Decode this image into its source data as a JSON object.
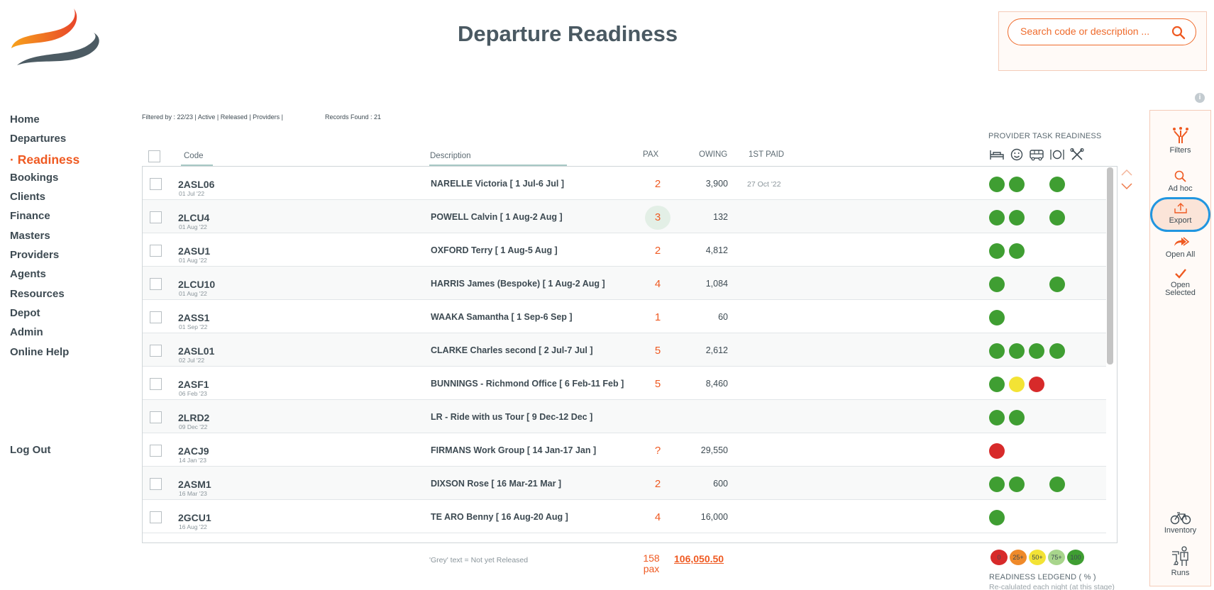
{
  "page": {
    "title": "Departure Readiness"
  },
  "search": {
    "placeholder": "Search code or description ..."
  },
  "nav": {
    "items": [
      {
        "label": "Home",
        "active": false
      },
      {
        "label": "Departures",
        "active": false
      },
      {
        "label": "Readiness",
        "active": true
      },
      {
        "label": "Bookings",
        "active": false
      },
      {
        "label": "Clients",
        "active": false
      },
      {
        "label": "Finance",
        "active": false
      },
      {
        "label": "Masters",
        "active": false
      },
      {
        "label": "Providers",
        "active": false
      },
      {
        "label": "Agents",
        "active": false
      },
      {
        "label": "Resources",
        "active": false
      },
      {
        "label": "Depot",
        "active": false
      },
      {
        "label": "Admin",
        "active": false
      },
      {
        "label": "Online Help",
        "active": false
      }
    ],
    "logout": "Log Out"
  },
  "filter": {
    "text": "Filtered by : 22/23 | Active | Released | Providers |",
    "records": "Records Found : 21"
  },
  "columns": {
    "code": "Code",
    "description": "Description",
    "pax": "PAX",
    "owing": "OWING",
    "first_paid": "1ST PAID",
    "provider_task": "PROVIDER  TASK READINESS",
    "provider_icons": [
      "bed-icon",
      "smiley-icon",
      "bus-icon",
      "dining-icon",
      "tools-icon"
    ]
  },
  "rows": [
    {
      "code": "2ASL06",
      "date": "01 Jul '22",
      "description": "NARELLE Victoria  [ 1 Jul-6 Jul ]",
      "pax": "2",
      "owing": "3,900",
      "first_paid": "27 Oct '22",
      "dots": [
        "green",
        "green",
        "",
        "green",
        ""
      ]
    },
    {
      "code": "2LCU4",
      "date": "01 Aug '22",
      "description": "POWELL Calvin  [ 1 Aug-2 Aug ]",
      "pax": "3",
      "pax_highlight": true,
      "owing": "132",
      "first_paid": "",
      "dots": [
        "green",
        "green",
        "",
        "green",
        ""
      ]
    },
    {
      "code": "2ASU1",
      "date": "01 Aug '22",
      "description": "OXFORD Terry  [ 1 Aug-5 Aug ]",
      "pax": "2",
      "owing": "4,812",
      "first_paid": "",
      "dots": [
        "green",
        "green",
        "",
        "",
        ""
      ]
    },
    {
      "code": "2LCU10",
      "date": "01 Aug '22",
      "description": "HARRIS James (Bespoke)  [ 1 Aug-2 Aug ]",
      "pax": "4",
      "owing": "1,084",
      "first_paid": "",
      "dots": [
        "green",
        "",
        "",
        "green",
        ""
      ]
    },
    {
      "code": "2ASS1",
      "date": "01 Sep '22",
      "description": "WAAKA Samantha  [ 1 Sep-6 Sep ]",
      "pax": "1",
      "owing": "60",
      "first_paid": "",
      "dots": [
        "green",
        "",
        "",
        "",
        ""
      ]
    },
    {
      "code": "2ASL01",
      "date": "02 Jul '22",
      "description": "CLARKE Charles second  [ 2 Jul-7 Jul ]",
      "pax": "5",
      "owing": "2,612",
      "first_paid": "",
      "dots": [
        "green",
        "green",
        "green",
        "green",
        ""
      ]
    },
    {
      "code": "2ASF1",
      "date": "06 Feb '23",
      "description": "BUNNINGS - Richmond Office  [ 6 Feb-11 Feb ]",
      "pax": "5",
      "owing": "8,460",
      "first_paid": "",
      "dots": [
        "green",
        "yellow",
        "red",
        "",
        ""
      ]
    },
    {
      "code": "2LRD2",
      "date": "09 Dec '22",
      "description": "LR - Ride with us Tour  [ 9 Dec-12 Dec ]",
      "pax": "",
      "owing": "",
      "first_paid": "",
      "dots": [
        "green",
        "green",
        "",
        "",
        ""
      ]
    },
    {
      "code": "2ACJ9",
      "date": "14 Jan '23",
      "description": "FIRMANS Work Group  [ 14 Jan-17 Jan ]",
      "pax": "?",
      "owing": "29,550",
      "first_paid": "",
      "dots": [
        "red",
        "",
        "",
        "",
        ""
      ]
    },
    {
      "code": "2ASM1",
      "date": "16 Mar '23",
      "description": "DIXSON Rose  [ 16 Mar-21 Mar ]",
      "pax": "2",
      "owing": "600",
      "first_paid": "",
      "dots": [
        "green",
        "green",
        "",
        "green",
        ""
      ]
    },
    {
      "code": "2GCU1",
      "date": "16 Aug '22",
      "description": "TE ARO Benny  [ 16 Aug-20 Aug ]",
      "pax": "4",
      "owing": "16,000",
      "first_paid": "",
      "dots": [
        "green",
        "",
        "",
        "",
        ""
      ]
    }
  ],
  "footer": {
    "grey_note": "'Grey' text = Not yet Released",
    "total_pax": "158",
    "total_pax_unit": "pax",
    "total_owing": "106,050.50",
    "legend_title": "READINESS LEDGEND ( % )",
    "legend_note": "Re-calulated each night (at this stage)",
    "legend": [
      {
        "label": "0",
        "color": "#d72a2a"
      },
      {
        "label": "25+",
        "color": "#ef8a2a"
      },
      {
        "label": "50+",
        "color": "#f3e335"
      },
      {
        "label": "75+",
        "color": "#a8d58c"
      },
      {
        "label": "100",
        "color": "#3f9e32"
      }
    ]
  },
  "toolbar": {
    "filters": "Filters",
    "adhoc": "Ad hoc",
    "export": "Export",
    "open_all": "Open All",
    "open_selected_1": "Open",
    "open_selected_2": "Selected",
    "inventory": "Inventory",
    "runs": "Runs"
  },
  "colors": {
    "accent": "#ef5a22",
    "text": "#3d4a52",
    "green": "#3f9e32",
    "yellow": "#f3e335",
    "red": "#d72a2a",
    "export_ring": "#2196e0"
  }
}
